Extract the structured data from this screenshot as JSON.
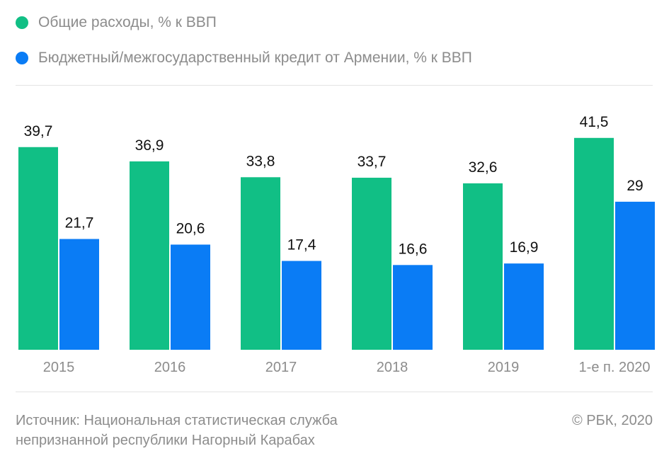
{
  "legend": {
    "items": [
      {
        "label": "Общие расходы, % к ВВП",
        "color": "#11bf85"
      },
      {
        "label": "Бюджетный/межгосударственный кредит от Армении, % к ВВП",
        "color": "#0a7cf5"
      }
    ]
  },
  "chart_data": {
    "type": "bar",
    "categories": [
      "2015",
      "2016",
      "2017",
      "2018",
      "2019",
      "1-е п. 2020"
    ],
    "series": [
      {
        "name": "Общие расходы, % к ВВП",
        "color": "#11bf85",
        "values": [
          39.7,
          36.9,
          33.8,
          33.7,
          32.6,
          41.5
        ],
        "labels": [
          "39,7",
          "36,9",
          "33,8",
          "33,7",
          "32,6",
          "41,5"
        ]
      },
      {
        "name": "Бюджетный/межгосударственный кредит от Армении, % к ВВП",
        "color": "#0a7cf5",
        "values": [
          21.7,
          20.6,
          17.4,
          16.6,
          16.9,
          29
        ],
        "labels": [
          "21,7",
          "20,6",
          "17,4",
          "16,6",
          "16,9",
          "29"
        ]
      }
    ],
    "ylim": [
      0,
      41.5
    ],
    "grid": false,
    "legend_position": "top-left"
  },
  "footer": {
    "source_line1": "Источник: Национальная статистическая служба",
    "source_line2": "непризнанной республики Нагорный Карабах",
    "copyright": "© РБК, 2020"
  }
}
